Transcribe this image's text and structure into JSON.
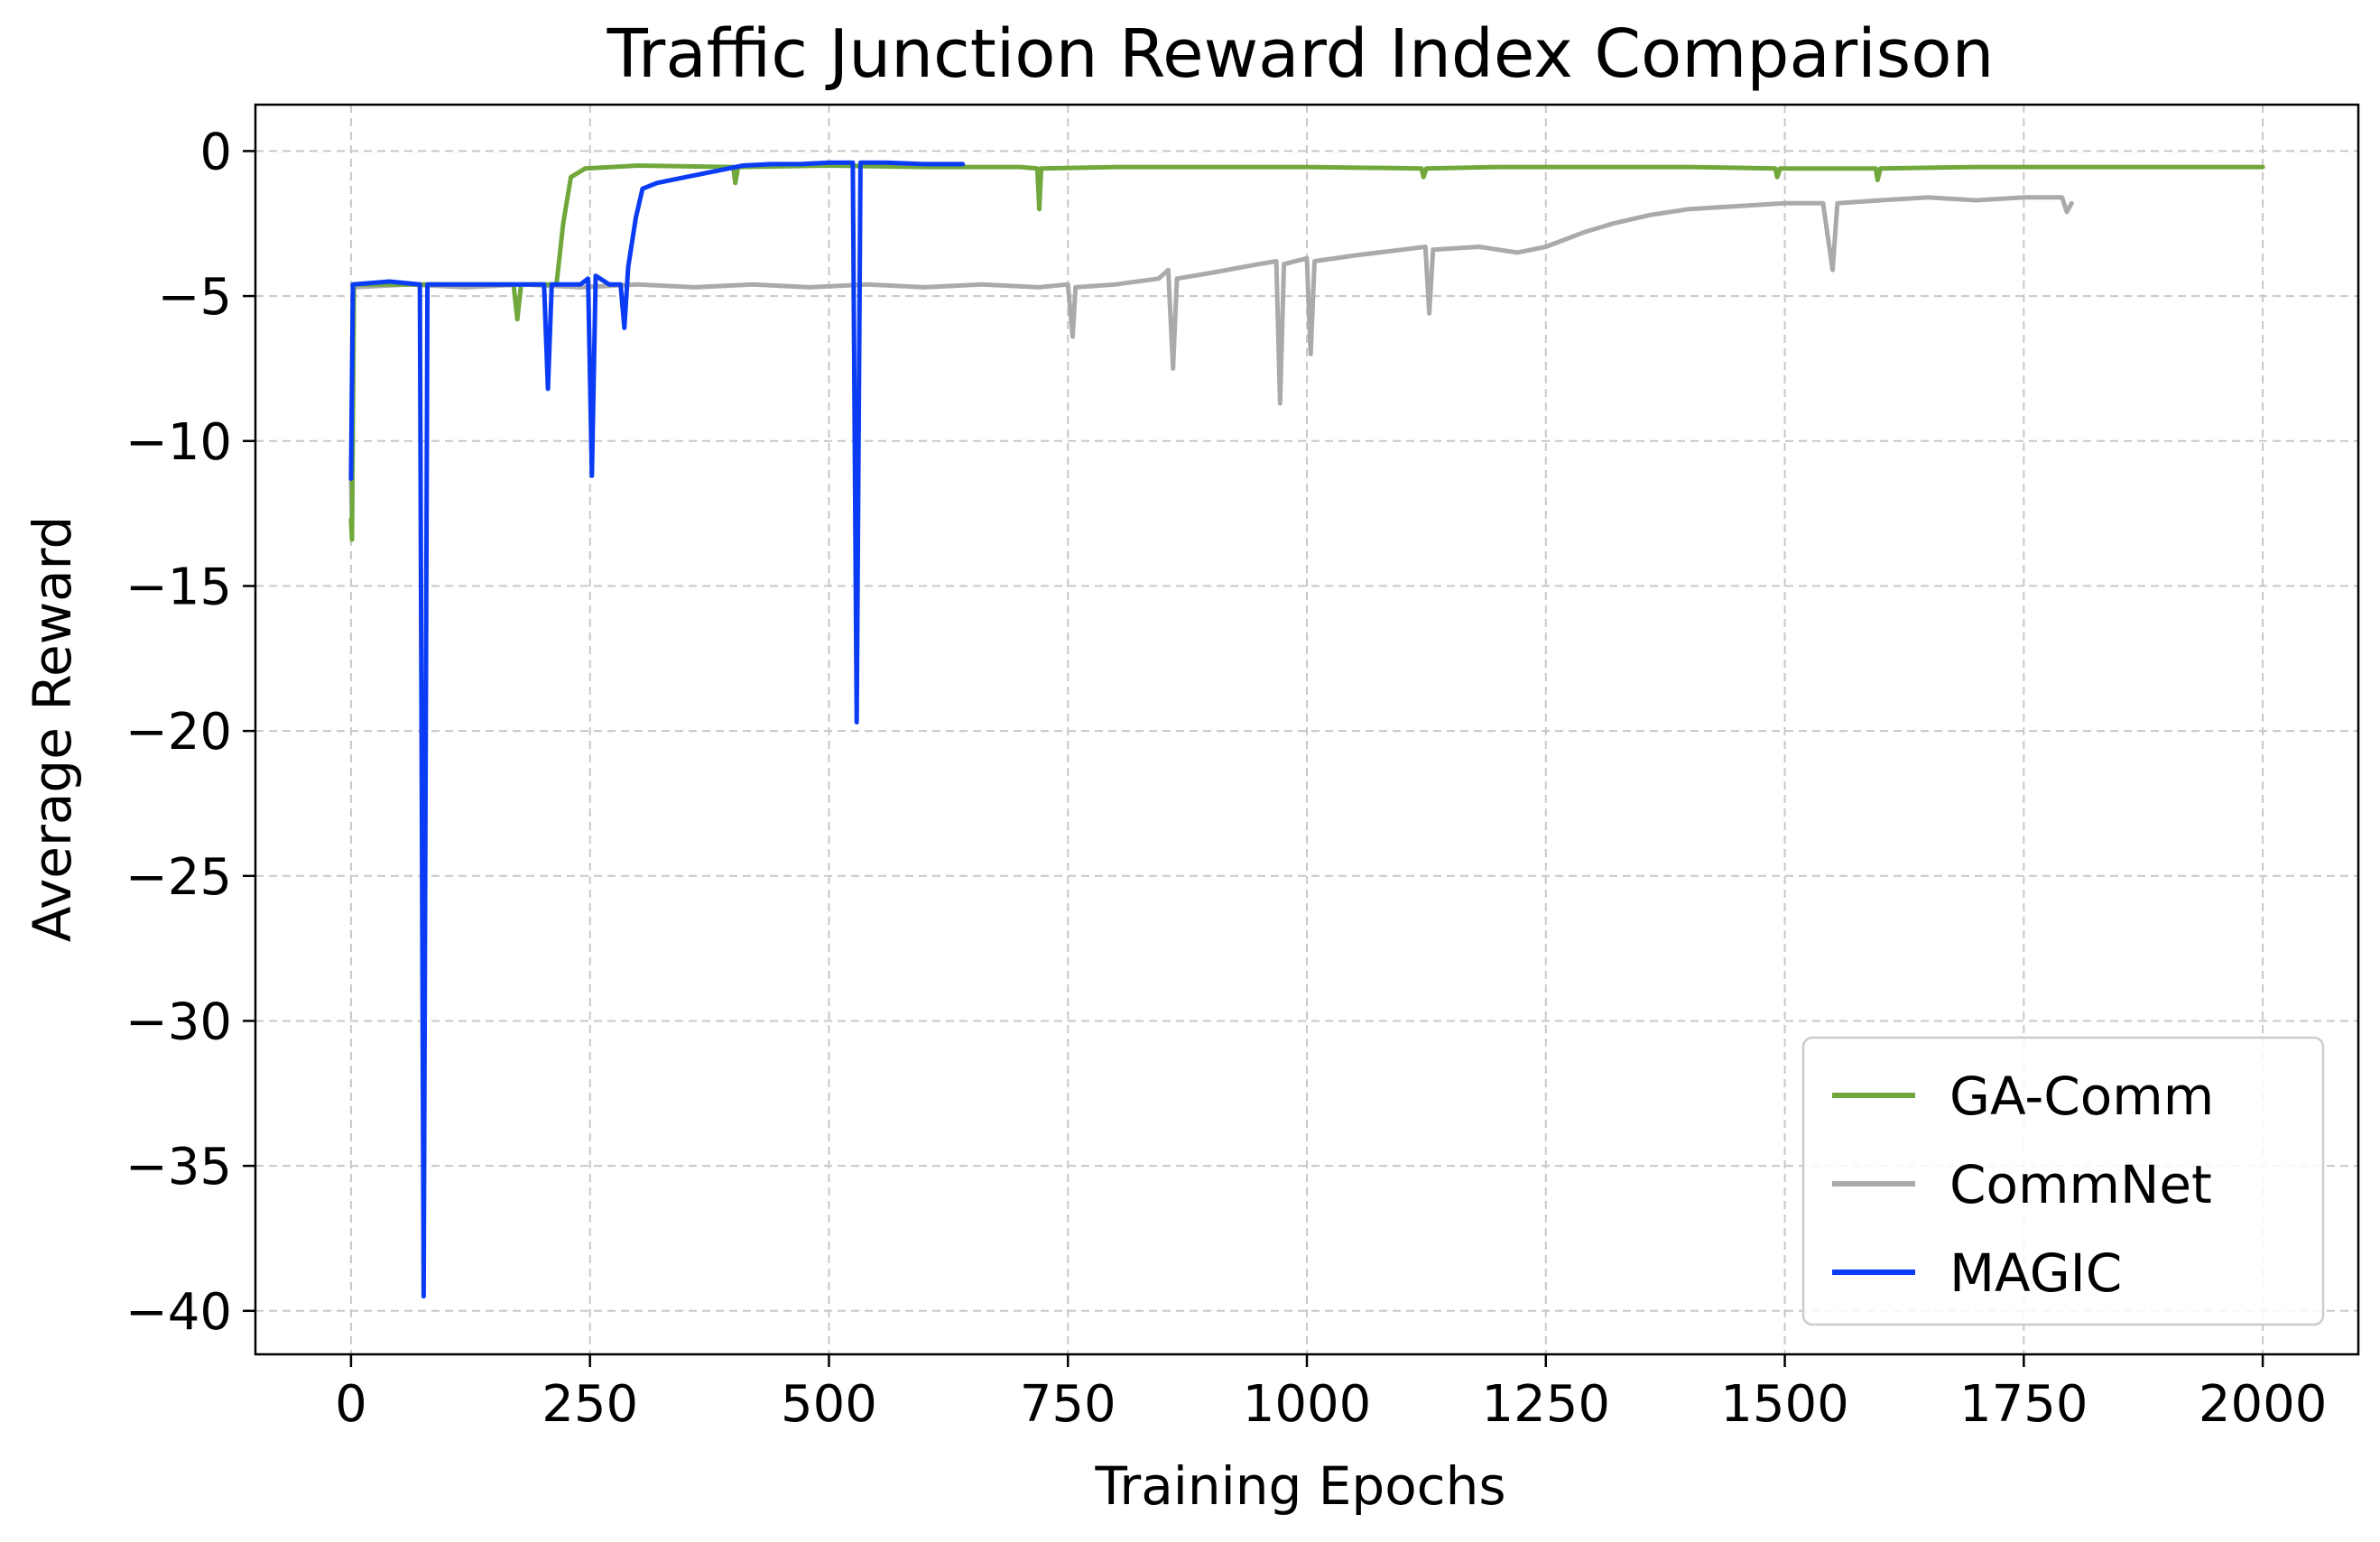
{
  "chart_data": {
    "type": "line",
    "title": "Traffic Junction Reward Index Comparison",
    "xlabel": "Training Epochs",
    "ylabel": "Average Reward",
    "xlim": [
      -100,
      2100
    ],
    "ylim": [
      -41.5,
      1.6
    ],
    "xticks": [
      0,
      250,
      500,
      750,
      1000,
      1250,
      1500,
      1750,
      2000
    ],
    "xtick_labels": [
      "0",
      "250",
      "500",
      "750",
      "1000",
      "1250",
      "1500",
      "1750",
      "2000"
    ],
    "yticks": [
      0,
      -5,
      -10,
      -15,
      -20,
      -25,
      -30,
      -35,
      -40
    ],
    "ytick_labels": [
      "0",
      "−5",
      "−10",
      "−15",
      "−20",
      "−25",
      "−30",
      "−35",
      "−40"
    ],
    "grid": true,
    "legend_position": "lower-right",
    "series": [
      {
        "name": "CommNet",
        "color": "#aaaaaa",
        "points": [
          [
            0,
            -11.3
          ],
          [
            1,
            -12.8
          ],
          [
            3,
            -4.7
          ],
          [
            60,
            -4.6
          ],
          [
            120,
            -4.7
          ],
          [
            180,
            -4.6
          ],
          [
            240,
            -4.7
          ],
          [
            300,
            -4.6
          ],
          [
            360,
            -4.7
          ],
          [
            420,
            -4.6
          ],
          [
            480,
            -4.7
          ],
          [
            540,
            -4.6
          ],
          [
            600,
            -4.7
          ],
          [
            660,
            -4.6
          ],
          [
            720,
            -4.7
          ],
          [
            750,
            -4.6
          ],
          [
            755,
            -6.4
          ],
          [
            758,
            -4.7
          ],
          [
            800,
            -4.6
          ],
          [
            845,
            -4.4
          ],
          [
            855,
            -4.1
          ],
          [
            860,
            -7.5
          ],
          [
            864,
            -4.4
          ],
          [
            900,
            -4.2
          ],
          [
            950,
            -3.9
          ],
          [
            968,
            -3.8
          ],
          [
            972,
            -8.7
          ],
          [
            976,
            -3.9
          ],
          [
            1000,
            -3.7
          ],
          [
            1004,
            -7.0
          ],
          [
            1008,
            -3.8
          ],
          [
            1050,
            -3.6
          ],
          [
            1100,
            -3.4
          ],
          [
            1124,
            -3.3
          ],
          [
            1128,
            -5.6
          ],
          [
            1132,
            -3.4
          ],
          [
            1180,
            -3.3
          ],
          [
            1220,
            -3.5
          ],
          [
            1250,
            -3.3
          ],
          [
            1290,
            -2.8
          ],
          [
            1320,
            -2.5
          ],
          [
            1360,
            -2.2
          ],
          [
            1400,
            -2.0
          ],
          [
            1450,
            -1.9
          ],
          [
            1500,
            -1.8
          ],
          [
            1540,
            -1.8
          ],
          [
            1550,
            -4.1
          ],
          [
            1555,
            -1.8
          ],
          [
            1600,
            -1.7
          ],
          [
            1650,
            -1.6
          ],
          [
            1700,
            -1.7
          ],
          [
            1750,
            -1.6
          ],
          [
            1790,
            -1.6
          ],
          [
            1795,
            -2.1
          ],
          [
            1800,
            -1.8
          ]
        ]
      },
      {
        "name": "GA-Comm",
        "color": "#70a83b",
        "points": [
          [
            0,
            -12.7
          ],
          [
            1,
            -13.4
          ],
          [
            3,
            -4.6
          ],
          [
            100,
            -4.6
          ],
          [
            170,
            -4.6
          ],
          [
            174,
            -5.8
          ],
          [
            178,
            -4.6
          ],
          [
            215,
            -4.6
          ],
          [
            222,
            -2.5
          ],
          [
            230,
            -0.9
          ],
          [
            245,
            -0.6
          ],
          [
            300,
            -0.5
          ],
          [
            400,
            -0.55
          ],
          [
            402,
            -1.1
          ],
          [
            405,
            -0.55
          ],
          [
            500,
            -0.5
          ],
          [
            600,
            -0.55
          ],
          [
            700,
            -0.55
          ],
          [
            718,
            -0.6
          ],
          [
            720,
            -2.0
          ],
          [
            722,
            -0.6
          ],
          [
            800,
            -0.55
          ],
          [
            900,
            -0.55
          ],
          [
            1000,
            -0.55
          ],
          [
            1120,
            -0.6
          ],
          [
            1122,
            -0.9
          ],
          [
            1125,
            -0.6
          ],
          [
            1200,
            -0.55
          ],
          [
            1300,
            -0.55
          ],
          [
            1400,
            -0.55
          ],
          [
            1490,
            -0.6
          ],
          [
            1492,
            -0.9
          ],
          [
            1495,
            -0.6
          ],
          [
            1595,
            -0.6
          ],
          [
            1597,
            -1.0
          ],
          [
            1600,
            -0.6
          ],
          [
            1700,
            -0.55
          ],
          [
            1800,
            -0.55
          ],
          [
            1900,
            -0.55
          ],
          [
            2000,
            -0.55
          ]
        ]
      },
      {
        "name": "MAGIC",
        "color": "#0a3cf5",
        "points": [
          [
            0,
            -11.3
          ],
          [
            2,
            -4.6
          ],
          [
            40,
            -4.5
          ],
          [
            72,
            -4.6
          ],
          [
            76,
            -39.5
          ],
          [
            80,
            -4.6
          ],
          [
            120,
            -4.6
          ],
          [
            160,
            -4.6
          ],
          [
            202,
            -4.6
          ],
          [
            206,
            -8.2
          ],
          [
            210,
            -4.6
          ],
          [
            240,
            -4.6
          ],
          [
            248,
            -4.4
          ],
          [
            252,
            -11.2
          ],
          [
            256,
            -4.3
          ],
          [
            270,
            -4.6
          ],
          [
            282,
            -4.6
          ],
          [
            286,
            -6.1
          ],
          [
            290,
            -4.0
          ],
          [
            298,
            -2.3
          ],
          [
            305,
            -1.3
          ],
          [
            320,
            -1.1
          ],
          [
            350,
            -0.9
          ],
          [
            380,
            -0.7
          ],
          [
            410,
            -0.5
          ],
          [
            440,
            -0.45
          ],
          [
            470,
            -0.45
          ],
          [
            500,
            -0.4
          ],
          [
            525,
            -0.4
          ],
          [
            529,
            -19.7
          ],
          [
            533,
            -0.4
          ],
          [
            560,
            -0.4
          ],
          [
            600,
            -0.45
          ],
          [
            640,
            -0.45
          ]
        ]
      }
    ]
  }
}
